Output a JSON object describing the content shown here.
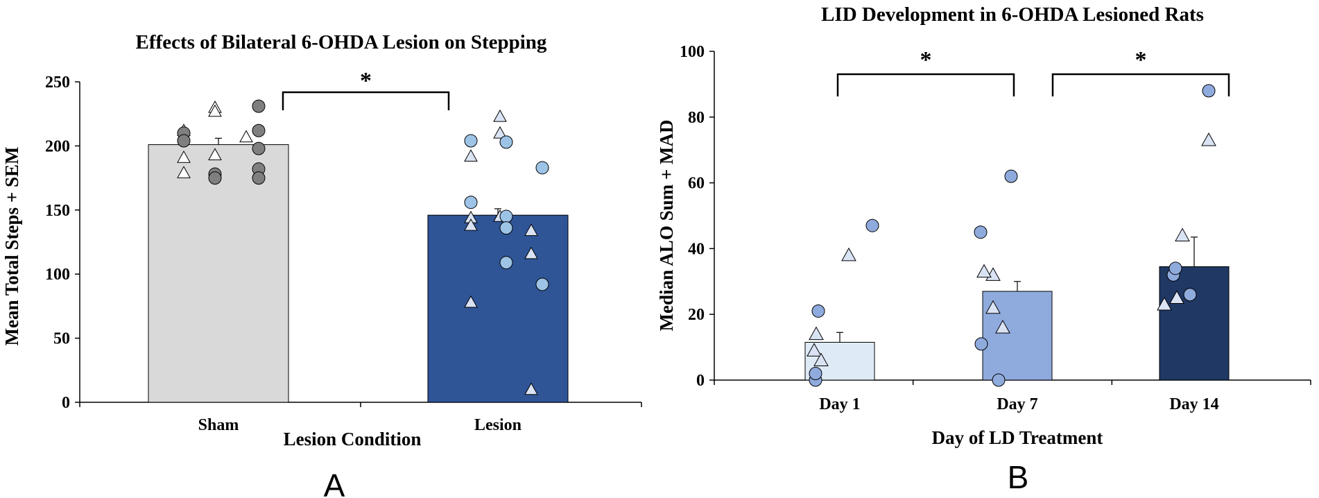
{
  "chart_data": [
    {
      "panel_label": "A",
      "type": "bar",
      "title": "Effects of Bilateral 6-OHDA Lesion on Stepping",
      "xlabel": "Lesion Condition",
      "ylabel": "Mean Total Steps + SEM",
      "ylim": [
        0,
        250
      ],
      "yticks": [
        "0",
        "50",
        "100",
        "150",
        "200",
        "250"
      ],
      "categories": [
        "Sham",
        "Lesion"
      ],
      "values": [
        201,
        146
      ],
      "errors": [
        5,
        5
      ],
      "bar_colors": [
        "#d9d9d9",
        "#2f5597"
      ],
      "points": [
        {
          "category": "Sham",
          "circle_color": "#7f7f7f",
          "circles": [
            210,
            204,
            178,
            175,
            231,
            212,
            198,
            182,
            175
          ],
          "triangles": [
            212,
            191,
            179,
            230,
            227,
            193,
            207
          ]
        },
        {
          "category": "Lesion",
          "circle_color": "#9dc3e6",
          "circles": [
            204,
            156,
            203,
            145,
            136,
            109,
            183,
            92
          ],
          "triangles": [
            192,
            144,
            138,
            78,
            223,
            210,
            145,
            134,
            116,
            10
          ]
        }
      ],
      "significance": [
        {
          "from": "Sham",
          "to": "Lesion",
          "label": "*"
        }
      ]
    },
    {
      "panel_label": "B",
      "type": "bar",
      "title": "LID Development in 6-OHDA Lesioned Rats",
      "xlabel": "Day of LD Treatment",
      "ylabel": "Median ALO Sum + MAD",
      "ylim": [
        0,
        100
      ],
      "yticks": [
        "0",
        "20",
        "40",
        "60",
        "80",
        "100"
      ],
      "categories": [
        "Day 1",
        "Day 7",
        "Day 14"
      ],
      "values": [
        11.5,
        27,
        34.5
      ],
      "errors": [
        3,
        3,
        9
      ],
      "bar_colors": [
        "#deebf7",
        "#8faadc",
        "#203864"
      ],
      "points": [
        {
          "category": "Day 1",
          "circle_color": "#8faadc",
          "circles": [
            0,
            2,
            21,
            47
          ],
          "triangles": [
            14,
            9,
            6,
            38
          ]
        },
        {
          "category": "Day 7",
          "circle_color": "#8faadc",
          "circles": [
            11,
            45,
            0,
            62
          ],
          "triangles": [
            22,
            16,
            32,
            33
          ]
        },
        {
          "category": "Day 14",
          "circle_color": "#8faadc",
          "circles": [
            32,
            26,
            34,
            88
          ],
          "triangles": [
            23,
            25,
            44,
            73
          ]
        }
      ],
      "significance": [
        {
          "from": "Day 1",
          "to": "Day 7",
          "label": "*"
        },
        {
          "from": "Day 7",
          "to": "Day 14",
          "label": "*"
        }
      ]
    }
  ]
}
